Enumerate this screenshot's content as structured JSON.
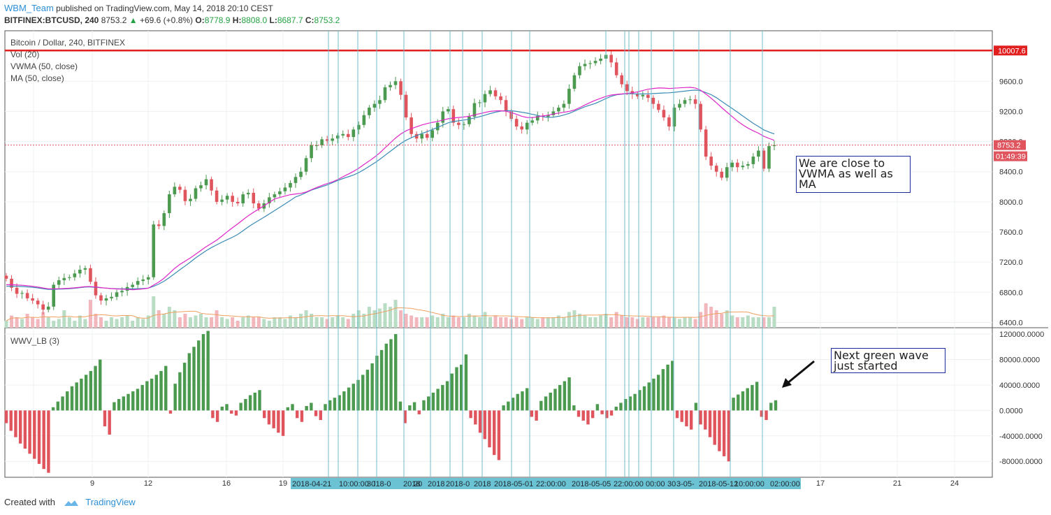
{
  "header": {
    "author": "WBM_Team",
    "published_text": "published on TradingView.com, May 14, 2018 20:10 CEST",
    "symbol": "BITFINEX:BTCUSD, 240",
    "last": "8753.2",
    "change": "+69.6 (+0.8%)",
    "open_label": "O:",
    "open": "8778.9",
    "high_label": "H:",
    "high": "8808.0",
    "low_label": "L:",
    "low": "8687.7",
    "close_label": "C:",
    "close": "8753.2"
  },
  "legends": {
    "main": "Bitcoin / Dollar, 240, BITFINEX",
    "vol": "Vol (20)",
    "vwma": "VWMA (50, close)",
    "ma": "MA (50, close)",
    "osc": "WWV_LB (3)"
  },
  "annotations": {
    "note1": "We are close to VWMA as well as MA",
    "note2": "Next green wave just started"
  },
  "footer": {
    "created_with": "Created with",
    "brand": "TradingView"
  },
  "colors": {
    "up": "#4c9a4f",
    "down": "#e0555d",
    "vwma": "#e026c8",
    "ma": "#3b8ab5",
    "resistance": "#e21f1f",
    "vline": "#6cbcc8",
    "price_tag": "#e0555d"
  },
  "chart_data": {
    "type": "candlestick",
    "symbol": "BITFINEX:BTCUSD",
    "interval": "240",
    "price_axis": {
      "ticks": [
        9600,
        9200,
        8800,
        8400,
        8000,
        7600,
        7200,
        6800,
        6400
      ],
      "tick_labels": [
        "9600.0",
        "9200.0",
        "8800.0",
        "8400.0",
        "8000.0",
        "7600.0",
        "7200.0",
        "6800.0",
        "6400.0"
      ],
      "range": [
        6330,
        10270
      ]
    },
    "resistance_line": {
      "value": 10007.6,
      "label": "10007.6"
    },
    "current_price": {
      "value": 8753.2,
      "label": "8753.2",
      "countdown": "01:49:39"
    },
    "x_axis": {
      "day_labels": [
        "9",
        "12",
        "16",
        "19",
        "17",
        "21",
        "24"
      ],
      "highlighted_labels": [
        "2018-04-21",
        "10:00:00",
        "30",
        "l18-0",
        "2018",
        "20",
        "2018",
        "2018-0",
        "2018",
        "2018-05-01",
        "22:00:00",
        "2018-05-05",
        "22:00:00",
        "00:00",
        "30",
        "3-05-",
        "2018-05-12",
        "10:00:00",
        "02:00:00"
      ]
    },
    "candles_close_path": [
      6980,
      6860,
      6780,
      6790,
      6720,
      6690,
      6640,
      6570,
      6610,
      6900,
      6960,
      6990,
      7000,
      7050,
      7100,
      7120,
      6940,
      6760,
      6690,
      6720,
      6740,
      6800,
      6820,
      6870,
      6900,
      6950,
      6970,
      7000,
      7700,
      7680,
      7850,
      8100,
      8200,
      8160,
      8010,
      8040,
      8180,
      8220,
      8300,
      8150,
      8000,
      8030,
      8080,
      8000,
      7980,
      8100,
      8120,
      7980,
      7910,
      7980,
      8060,
      8100,
      8140,
      8190,
      8250,
      8330,
      8400,
      8580,
      8750,
      8750,
      8830,
      8810,
      8840,
      8880,
      8900,
      8860,
      8960,
      9020,
      9150,
      9250,
      9300,
      9350,
      9520,
      9550,
      9600,
      9420,
      9120,
      8900,
      8840,
      8900,
      8850,
      8950,
      9050,
      9200,
      9230,
      9050,
      9020,
      9030,
      9130,
      9310,
      9320,
      9430,
      9480,
      9400,
      9350,
      9200,
      9100,
      9000,
      8960,
      9050,
      9080,
      9140,
      9130,
      9150,
      9200,
      9250,
      9300,
      9500,
      9680,
      9800,
      9830,
      9840,
      9870,
      9900,
      9950,
      9850,
      9680,
      9560,
      9470,
      9430,
      9400,
      9420,
      9380,
      9300,
      9220,
      9120,
      9000,
      9250,
      9300,
      9350,
      9360,
      9300,
      8960,
      8600,
      8480,
      8400,
      8320,
      8460,
      8520,
      8460,
      8480,
      8500,
      8600,
      8680,
      8440,
      8740,
      8753.2
    ],
    "vwma_range": [
      6900,
      9480
    ],
    "ma_range": [
      6880,
      9500
    ],
    "volume_relative": [
      0.2,
      0.35,
      0.3,
      0.25,
      0.4,
      0.3,
      0.25,
      0.45,
      0.3,
      0.2,
      0.25,
      0.5,
      0.3,
      0.2,
      0.35,
      0.25,
      0.8,
      0.4,
      0.3,
      0.2,
      0.3,
      0.25,
      0.3,
      0.35,
      0.2,
      0.3,
      0.25,
      0.35,
      0.9,
      0.5,
      0.4,
      0.6,
      0.5,
      0.3,
      0.4,
      0.3,
      0.35,
      0.4,
      0.3,
      0.3,
      0.5,
      0.3,
      0.25,
      0.3,
      0.2,
      0.3,
      0.35,
      0.3,
      0.3,
      0.25,
      0.2,
      0.3,
      0.3,
      0.25,
      0.35,
      0.3,
      0.4,
      0.5,
      0.4,
      0.3,
      0.3,
      0.25,
      0.3,
      0.35,
      0.3,
      0.25,
      0.4,
      0.5,
      0.4,
      0.6,
      0.5,
      0.55,
      0.7,
      0.6,
      0.8,
      0.5,
      0.4,
      0.35,
      0.3,
      0.3,
      0.3,
      0.35,
      0.3,
      0.4,
      0.3,
      0.35,
      0.3,
      0.3,
      0.4,
      0.35,
      0.3,
      0.45,
      0.3,
      0.35,
      0.3,
      0.3,
      0.25,
      0.3,
      0.25,
      0.3,
      0.3,
      0.25,
      0.3,
      0.3,
      0.3,
      0.35,
      0.3,
      0.45,
      0.5,
      0.4,
      0.35,
      0.3,
      0.3,
      0.35,
      0.4,
      0.3,
      0.45,
      0.35,
      0.3,
      0.3,
      0.25,
      0.3,
      0.3,
      0.3,
      0.3,
      0.35,
      0.3,
      0.3,
      0.25,
      0.3,
      0.3,
      0.25,
      0.45,
      0.7,
      0.6,
      0.5,
      0.4,
      0.5,
      0.35,
      0.3,
      0.3,
      0.35,
      0.3,
      0.3,
      0.3,
      0.3,
      0.6
    ],
    "osc_axis": {
      "ticks": [
        120000,
        80000,
        40000,
        0,
        -40000,
        -80000
      ],
      "tick_labels": [
        "120000.0000",
        "80000.0000",
        "40000.0000",
        "0.0000",
        "-40000.0000",
        "-80000.0000"
      ],
      "range": [
        -105000,
        130000
      ]
    },
    "osc_values": [
      -20000,
      -32000,
      -42000,
      -52000,
      -60000,
      -68000,
      -76000,
      -84000,
      -92000,
      -98000,
      5000,
      14000,
      22000,
      30000,
      38000,
      44000,
      50000,
      56000,
      62000,
      70000,
      80000,
      -25000,
      -38000,
      13000,
      18000,
      22000,
      26000,
      30000,
      34000,
      40000,
      46000,
      50000,
      56000,
      62000,
      70000,
      -5000,
      42000,
      60000,
      75000,
      90000,
      100000,
      110000,
      120000,
      125000,
      -12000,
      -18000,
      6000,
      10000,
      -5000,
      -8000,
      12000,
      18000,
      24000,
      28000,
      32000,
      -12000,
      -22000,
      -28000,
      -35000,
      -40000,
      5000,
      10000,
      -12000,
      -18000,
      7000,
      12000,
      -9000,
      -15000,
      10000,
      16000,
      20000,
      24000,
      30000,
      36000,
      42000,
      48000,
      56000,
      64000,
      74000,
      86000,
      95000,
      105000,
      112000,
      120000,
      14000,
      -20000,
      8000,
      13000,
      -6000,
      16000,
      22000,
      28000,
      34000,
      40000,
      46000,
      58000,
      68000,
      72000,
      88000,
      -12000,
      -22000,
      -35000,
      -45000,
      -58000,
      -70000,
      -78000,
      8000,
      14000,
      20000,
      26000,
      30000,
      35000,
      -10000,
      -16000,
      15000,
      22000,
      28000,
      34000,
      40000,
      46000,
      52000,
      8000,
      -10000,
      -16000,
      -22000,
      -12000,
      10000,
      -6000,
      -12000,
      -8000,
      6000,
      12000,
      18000,
      22000,
      26000,
      32000,
      38000,
      44000,
      50000,
      56000,
      65000,
      72000,
      78000,
      -12000,
      -18000,
      -25000,
      -30000,
      12000,
      -22000,
      -30000,
      -42000,
      -54000,
      -64000,
      -72000,
      -80000,
      20000,
      25000,
      30000,
      35000,
      40000,
      45000,
      -10000,
      -15000,
      12000,
      16000
    ]
  }
}
